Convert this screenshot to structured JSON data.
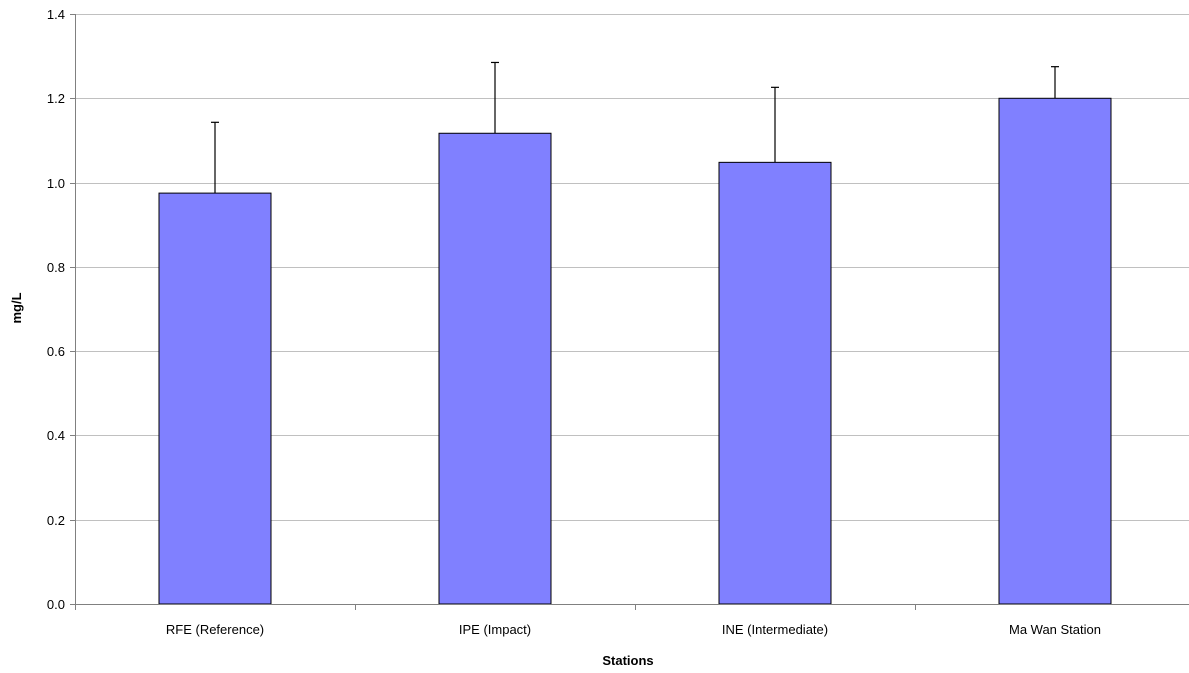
{
  "chart_data": {
    "type": "bar",
    "title": "",
    "xlabel": "Stations",
    "ylabel": "mg/L",
    "ylim": [
      0,
      1.4
    ],
    "yticks": [
      0.0,
      0.2,
      0.4,
      0.6,
      0.8,
      1.0,
      1.2,
      1.4
    ],
    "ytick_labels": [
      "0.0",
      "0.2",
      "0.4",
      "0.6",
      "0.8",
      "1.0",
      "1.2",
      "1.4"
    ],
    "categories": [
      "RFE (Reference)",
      "IPE (Impact)",
      "INE (Intermediate)",
      "Ma Wan Station"
    ],
    "values": [
      0.975,
      1.117,
      1.048,
      1.2
    ],
    "error_upper": [
      0.168,
      0.168,
      0.178,
      0.075
    ],
    "grid": true,
    "legend": "none",
    "colors": {
      "bar_fill": "#8080ff",
      "bar_stroke": "#000000",
      "grid": "#c0c0c0",
      "axis": "#808080",
      "error_bar": "#000000"
    }
  }
}
